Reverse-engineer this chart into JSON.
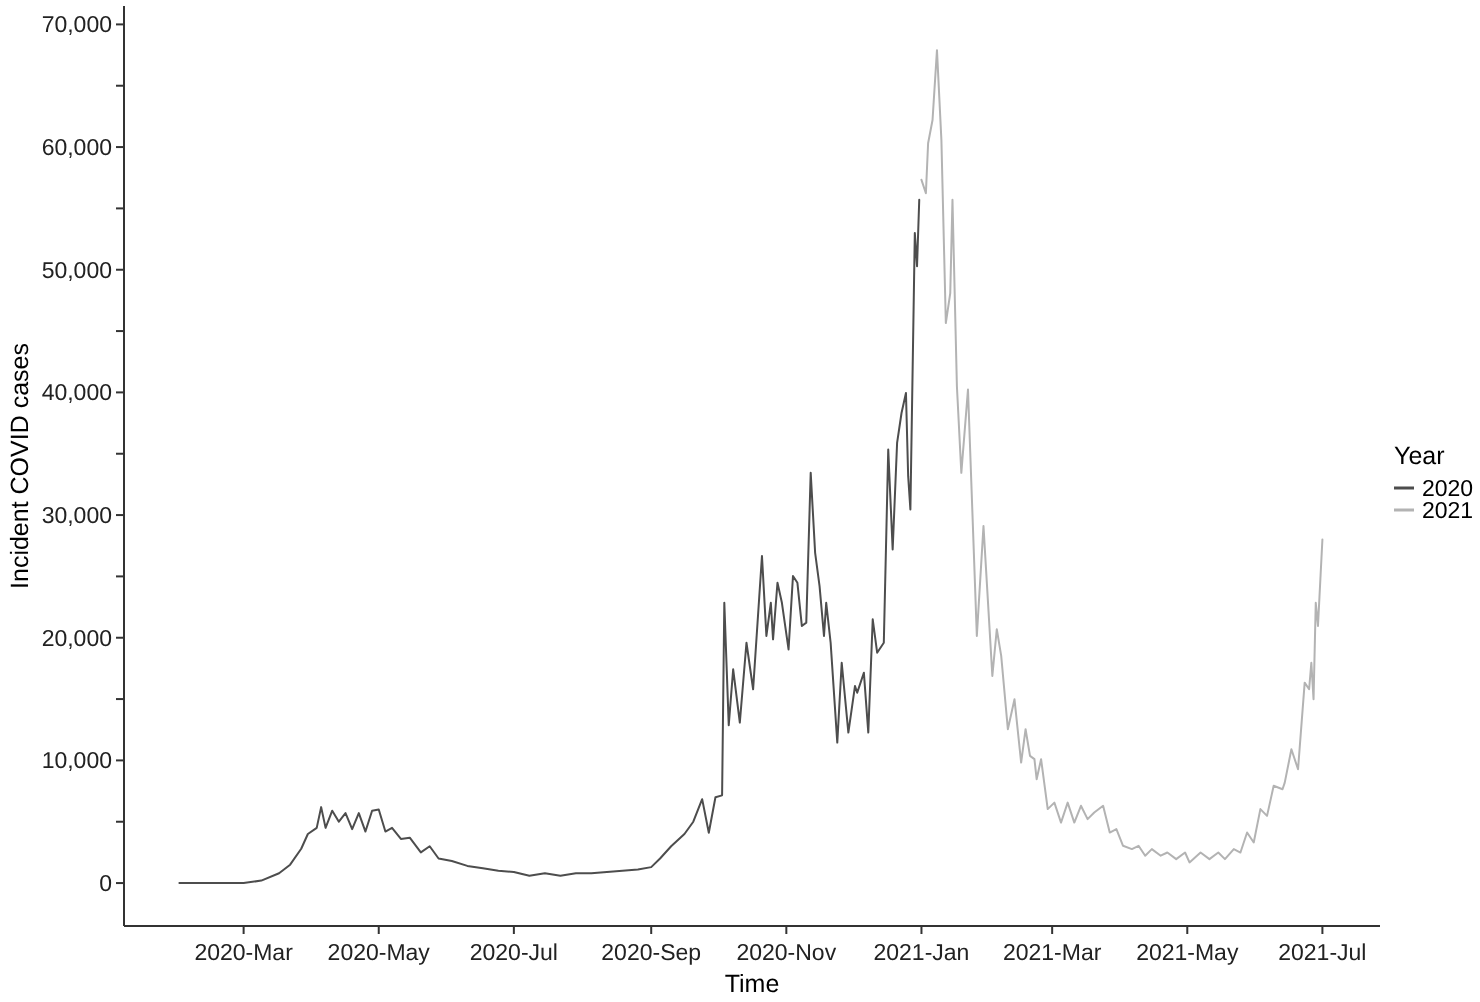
{
  "chart_data": {
    "type": "line",
    "xlabel": "Time",
    "ylabel": "Incident COVID cases",
    "legend_title": "Year",
    "legend": "right",
    "grid": false,
    "marker": "none",
    "line_style": "solid",
    "xlim": [
      "2020-01-07",
      "2021-07-27"
    ],
    "xticks": [
      {
        "value": "2020-03-01",
        "label": "2020-Mar"
      },
      {
        "value": "2020-05-01",
        "label": "2020-May"
      },
      {
        "value": "2020-07-01",
        "label": "2020-Jul"
      },
      {
        "value": "2020-09-01",
        "label": "2020-Sep"
      },
      {
        "value": "2020-11-01",
        "label": "2020-Nov"
      },
      {
        "value": "2021-01-01",
        "label": "2021-Jan"
      },
      {
        "value": "2021-03-01",
        "label": "2021-Mar"
      },
      {
        "value": "2021-05-01",
        "label": "2021-May"
      },
      {
        "value": "2021-07-01",
        "label": "2021-Jul"
      }
    ],
    "ylim": [
      -3500,
      71500
    ],
    "yticks": [
      0,
      {
        "value": 5000,
        "label": null
      },
      {
        "value": 10000,
        "label": "10,000"
      },
      {
        "value": 15000,
        "label": null
      },
      {
        "value": 20000,
        "label": "20,000"
      },
      {
        "value": 25000,
        "label": null
      },
      {
        "value": 30000,
        "label": "30,000"
      },
      {
        "value": 35000,
        "label": null
      },
      {
        "value": 40000,
        "label": "40,000"
      },
      {
        "value": 45000,
        "label": null
      },
      {
        "value": 50000,
        "label": "50,000"
      },
      {
        "value": 55000,
        "label": null
      },
      {
        "value": 60000,
        "label": "60,000"
      },
      {
        "value": 65000,
        "label": null
      },
      {
        "value": 70000,
        "label": "70,000"
      }
    ],
    "series": [
      {
        "name": "2020",
        "color": "#4d4d4d",
        "x": [
          "2020-02-01",
          "2020-03-01",
          "2020-03-09",
          "2020-03-17",
          "2020-03-22",
          "2020-03-27",
          "2020-03-30",
          "2020-04-03",
          "2020-04-05",
          "2020-04-07",
          "2020-04-10",
          "2020-04-13",
          "2020-04-16",
          "2020-04-19",
          "2020-04-22",
          "2020-04-25",
          "2020-04-28",
          "2020-05-01",
          "2020-05-04",
          "2020-05-07",
          "2020-05-11",
          "2020-05-15",
          "2020-05-20",
          "2020-05-24",
          "2020-05-28",
          "2020-06-03",
          "2020-06-10",
          "2020-06-17",
          "2020-06-24",
          "2020-07-01",
          "2020-07-08",
          "2020-07-15",
          "2020-07-22",
          "2020-07-29",
          "2020-08-05",
          "2020-08-12",
          "2020-08-19",
          "2020-08-26",
          "2020-09-01",
          "2020-09-05",
          "2020-09-10",
          "2020-09-16",
          "2020-09-20",
          "2020-09-24",
          "2020-09-27",
          "2020-09-30",
          "2020-10-03",
          "2020-10-04",
          "2020-10-06",
          "2020-10-08",
          "2020-10-11",
          "2020-10-14",
          "2020-10-17",
          "2020-10-21",
          "2020-10-23",
          "2020-10-25",
          "2020-10-26",
          "2020-10-28",
          "2020-10-30",
          "2020-11-02",
          "2020-11-04",
          "2020-11-06",
          "2020-11-08",
          "2020-11-10",
          "2020-11-12",
          "2020-11-14",
          "2020-11-16",
          "2020-11-18",
          "2020-11-19",
          "2020-11-21",
          "2020-11-24",
          "2020-11-26",
          "2020-11-29",
          "2020-12-02",
          "2020-12-03",
          "2020-12-06",
          "2020-12-08",
          "2020-12-10",
          "2020-12-12",
          "2020-12-15",
          "2020-12-17",
          "2020-12-19",
          "2020-12-21",
          "2020-12-23",
          "2020-12-25",
          "2020-12-26",
          "2020-12-27",
          "2020-12-29",
          "2020-12-30",
          "2020-12-31"
        ],
        "values": [
          0,
          0,
          200,
          800,
          1500,
          2800,
          4000,
          4500,
          6190,
          4500,
          5900,
          5000,
          5700,
          4400,
          5700,
          4200,
          5900,
          6000,
          4200,
          4500,
          3600,
          3700,
          2500,
          3000,
          2000,
          1800,
          1400,
          1200,
          1000,
          900,
          600,
          800,
          600,
          800,
          800,
          900,
          1000,
          1100,
          1300,
          2000,
          3000,
          4000,
          5000,
          6840,
          4100,
          7000,
          7150,
          22850,
          12870,
          17430,
          13080,
          19590,
          15800,
          26660,
          20150,
          22850,
          19870,
          24480,
          22850,
          19050,
          25030,
          24480,
          20960,
          21230,
          33440,
          26920,
          24210,
          20150,
          22850,
          19590,
          11450,
          17960,
          12270,
          16070,
          15520,
          17150,
          12270,
          21500,
          18780,
          19590,
          35340,
          27200,
          35880,
          38320,
          39950,
          33170,
          30460,
          53000,
          50280,
          55700
        ]
      },
      {
        "name": "2021",
        "color": "#b3b3b3",
        "x": [
          "2021-01-01",
          "2021-01-03",
          "2021-01-04",
          "2021-01-06",
          "2021-01-08",
          "2021-01-10",
          "2021-01-12",
          "2021-01-14",
          "2021-01-15",
          "2021-01-17",
          "2021-01-19",
          "2021-01-22",
          "2021-01-26",
          "2021-01-29",
          "2021-02-02",
          "2021-02-04",
          "2021-02-06",
          "2021-02-09",
          "2021-02-12",
          "2021-02-15",
          "2021-02-17",
          "2021-02-19",
          "2021-02-21",
          "2021-02-22",
          "2021-02-24",
          "2021-02-27",
          "2021-03-02",
          "2021-03-05",
          "2021-03-08",
          "2021-03-11",
          "2021-03-14",
          "2021-03-17",
          "2021-03-20",
          "2021-03-24",
          "2021-03-27",
          "2021-03-30",
          "2021-04-02",
          "2021-04-06",
          "2021-04-09",
          "2021-04-12",
          "2021-04-15",
          "2021-04-19",
          "2021-04-22",
          "2021-04-26",
          "2021-04-30",
          "2021-05-02",
          "2021-05-07",
          "2021-05-11",
          "2021-05-15",
          "2021-05-18",
          "2021-05-22",
          "2021-05-25",
          "2021-05-28",
          "2021-05-31",
          "2021-06-03",
          "2021-06-06",
          "2021-06-09",
          "2021-06-13",
          "2021-06-14",
          "2021-06-17",
          "2021-06-20",
          "2021-06-23",
          "2021-06-25",
          "2021-06-26",
          "2021-06-27",
          "2021-06-28",
          "2021-06-29",
          "2021-07-01"
        ],
        "values": [
          57330,
          56240,
          60310,
          62210,
          67900,
          60590,
          45650,
          48100,
          55700,
          40500,
          33440,
          40230,
          20150,
          29100,
          16890,
          20690,
          18520,
          12540,
          14980,
          9820,
          12540,
          10370,
          10100,
          8470,
          10100,
          6030,
          6560,
          4930,
          6560,
          4930,
          6300,
          5210,
          5750,
          6300,
          4120,
          4400,
          3040,
          2770,
          3040,
          2230,
          2770,
          2230,
          2490,
          1950,
          2490,
          1680,
          2490,
          1950,
          2490,
          1950,
          2770,
          2490,
          4120,
          3310,
          6030,
          5480,
          7930,
          7650,
          8190,
          10910,
          9280,
          16340,
          15800,
          17960,
          14980,
          22850,
          20960,
          28010
        ]
      }
    ]
  }
}
